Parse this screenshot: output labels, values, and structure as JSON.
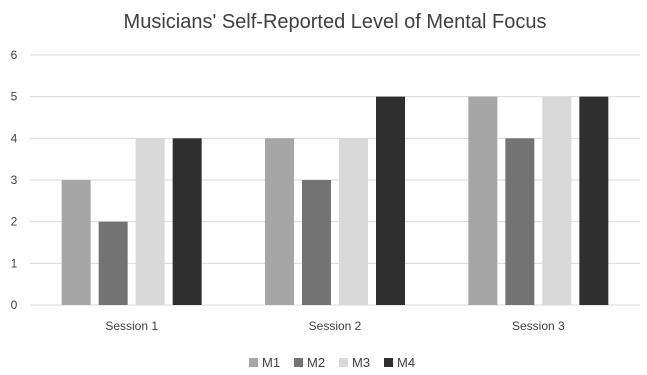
{
  "chart_data": {
    "type": "bar",
    "title": "Musicians' Self-Reported Level of Mental Focus",
    "categories": [
      "Session 1",
      "Session 2",
      "Session 3"
    ],
    "series": [
      {
        "name": "M1",
        "values": [
          3,
          4,
          5
        ],
        "color": "#a6a6a6"
      },
      {
        "name": "M2",
        "values": [
          2,
          3,
          4
        ],
        "color": "#737373"
      },
      {
        "name": "M3",
        "values": [
          4,
          4,
          5
        ],
        "color": "#d9d9d9"
      },
      {
        "name": "M4",
        "values": [
          4,
          5,
          5
        ],
        "color": "#2f2f2f"
      }
    ],
    "ylim": [
      0,
      6
    ],
    "yticks": [
      "0",
      "1",
      "2",
      "3",
      "4",
      "5",
      "6"
    ],
    "grid": true,
    "legend_position": "bottom",
    "colors": {
      "grid": "#d9d9d9",
      "text": "#404040",
      "title": "#404040"
    }
  }
}
